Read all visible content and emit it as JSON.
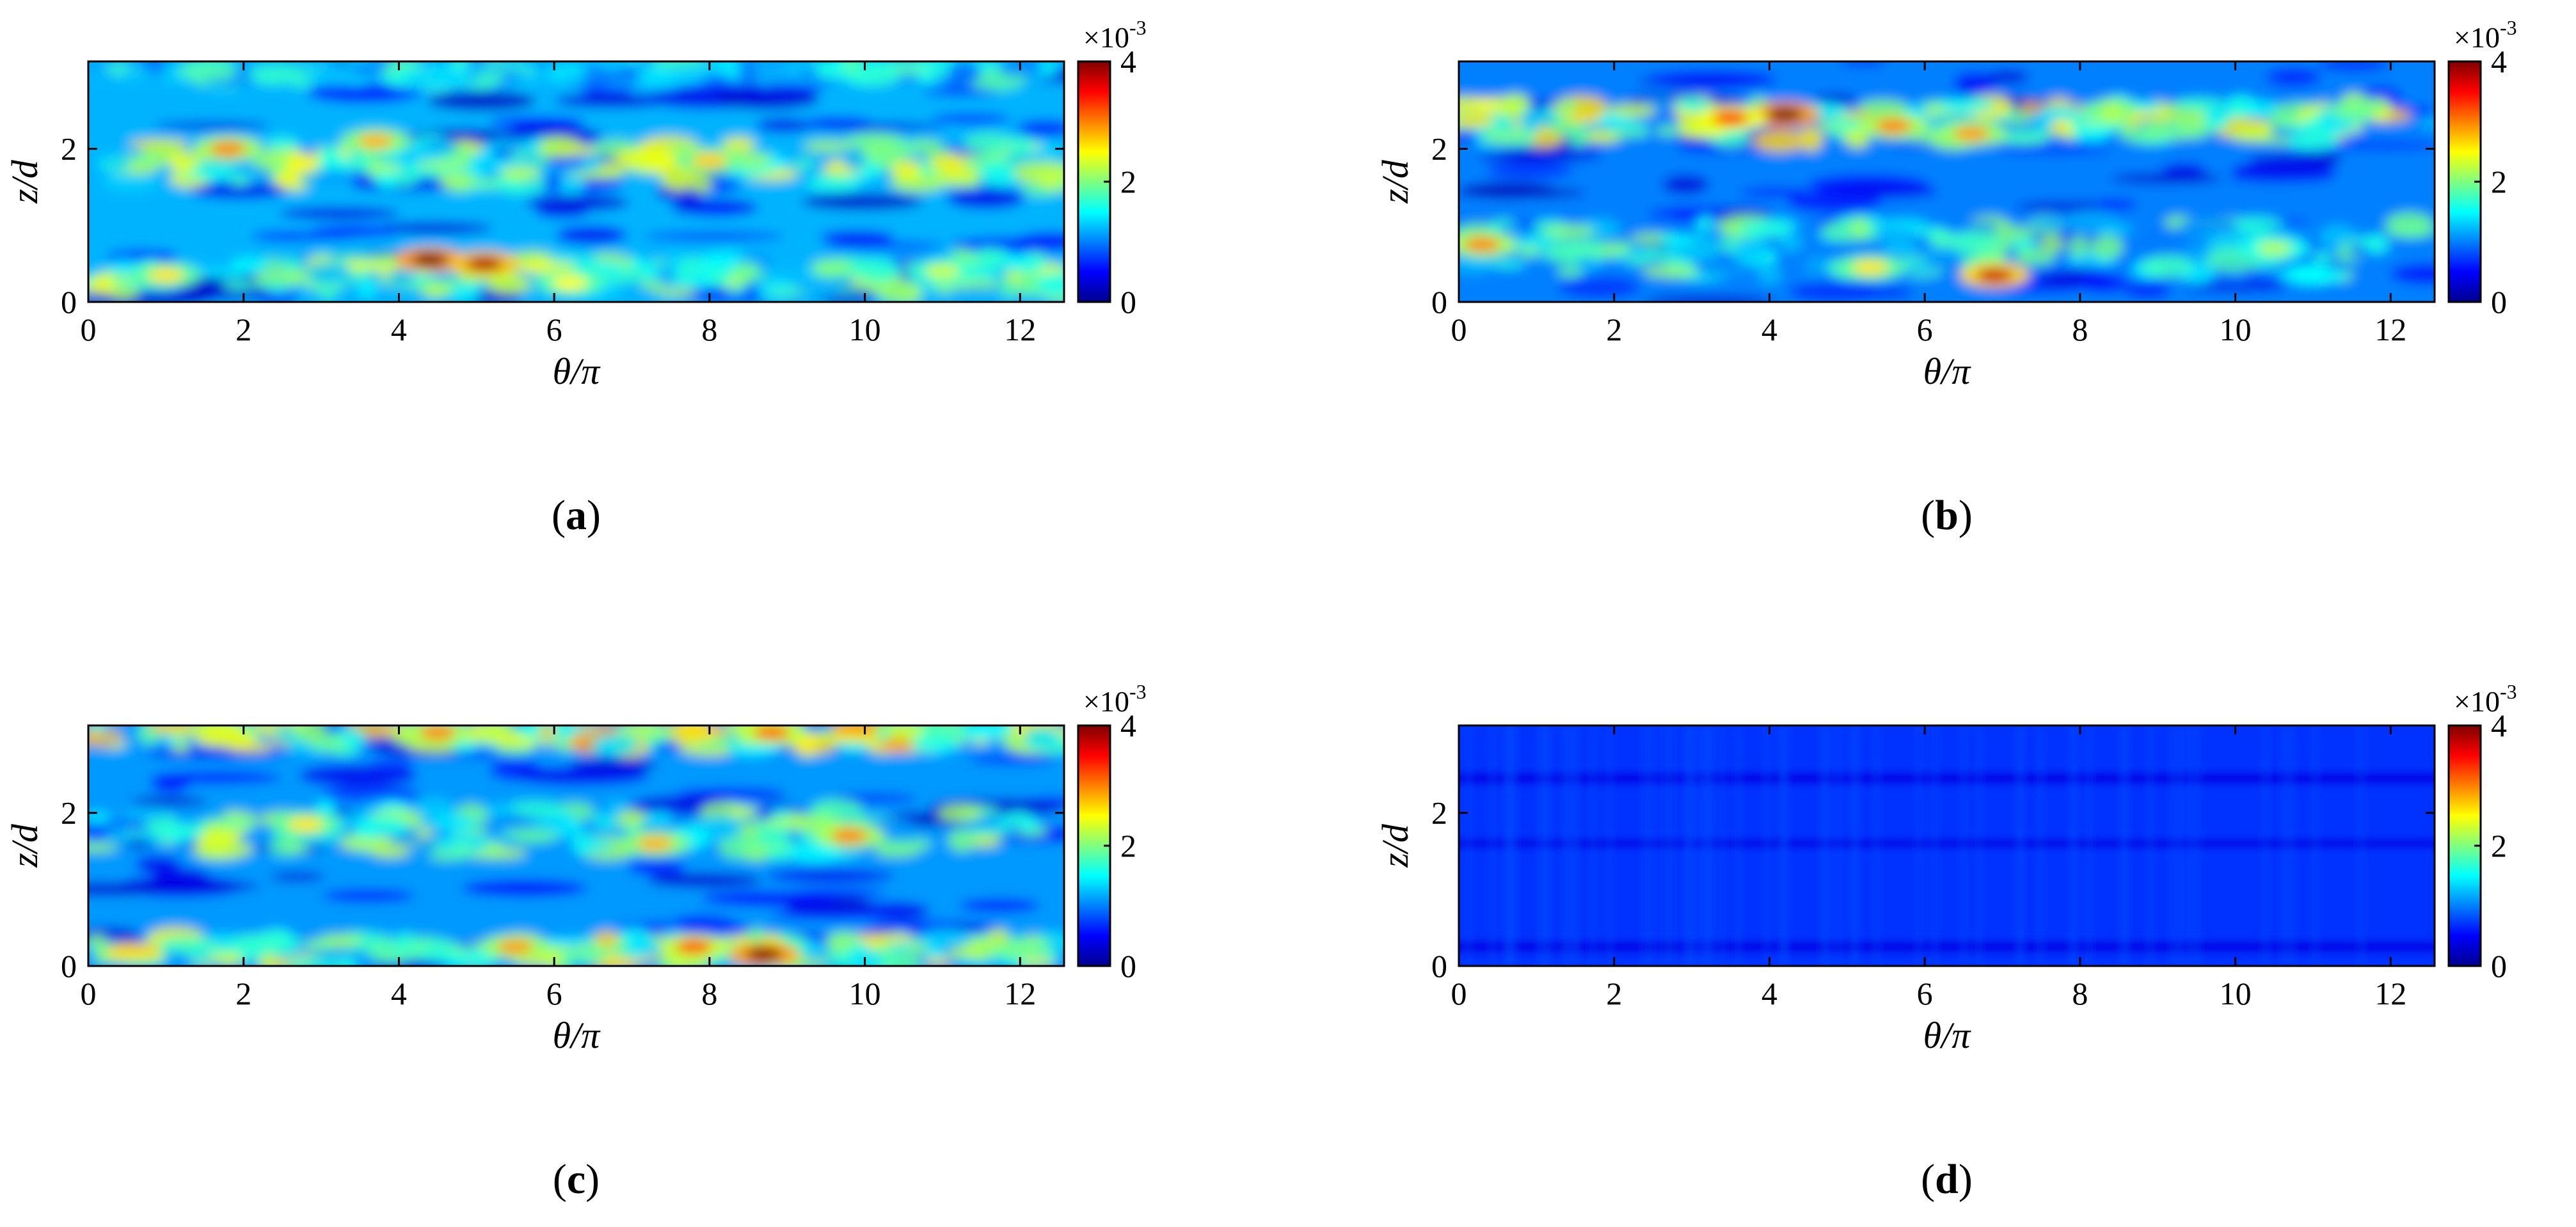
{
  "figure": {
    "colormap": [
      "#00008f",
      "#0000ff",
      "#0080ff",
      "#00ffff",
      "#80ff80",
      "#ffff00",
      "#ff8000",
      "#ff0000",
      "#800000"
    ],
    "panels": [
      {
        "id": "a",
        "caption_letter": "a",
        "xlabel": "θ/π",
        "ylabel": "z/d",
        "colorbar": {
          "ticks": [
            "0",
            "2",
            "4"
          ],
          "min": 0,
          "max": 4,
          "multiplier_base": "×10",
          "multiplier_exp": "-3"
        }
      },
      {
        "id": "b",
        "caption_letter": "b",
        "xlabel": "θ/π",
        "ylabel": "z/d",
        "colorbar": {
          "ticks": [
            "0",
            "2",
            "4"
          ],
          "min": 0,
          "max": 4,
          "multiplier_base": "×10",
          "multiplier_exp": "-3"
        }
      },
      {
        "id": "c",
        "caption_letter": "c",
        "xlabel": "θ/π",
        "ylabel": "z/d",
        "colorbar": {
          "ticks": [
            "0",
            "2",
            "4"
          ],
          "min": 0,
          "max": 4,
          "multiplier_base": "×10",
          "multiplier_exp": "-3"
        }
      },
      {
        "id": "d",
        "caption_letter": "d",
        "xlabel": "θ/π",
        "ylabel": "z/d",
        "colorbar": {
          "ticks": [
            "0",
            "2",
            "4"
          ],
          "min": 0,
          "max": 4,
          "multiplier_base": "×10",
          "multiplier_exp": "-3"
        }
      }
    ]
  },
  "chart_data": [
    {
      "type": "heatmap",
      "panel": "a",
      "x_ticks": [
        "0",
        "2",
        "4",
        "6",
        "8",
        "10",
        "12"
      ],
      "y_ticks": [
        "0",
        "2"
      ],
      "xlabel": "θ/π",
      "ylabel": "z/d",
      "xlim": [
        0,
        12.566
      ],
      "ylim": [
        0,
        3.1416
      ],
      "clim": [
        0,
        0.004
      ],
      "colorbar_ticks": [
        "0",
        "2",
        "4"
      ],
      "background_value": 0.0012,
      "bands": [
        {
          "z": 1.8,
          "width": 0.55,
          "value": 0.0021
        },
        {
          "z": 0.35,
          "width": 0.45,
          "value": 0.002
        },
        {
          "z": 3.0,
          "width": 0.2,
          "value": 0.0015
        }
      ],
      "hotspots": [
        {
          "x": 1.8,
          "z": 2.0,
          "value": 0.003
        },
        {
          "x": 3.7,
          "z": 2.1,
          "value": 0.0028
        },
        {
          "x": 4.4,
          "z": 0.55,
          "value": 0.004
        },
        {
          "x": 5.1,
          "z": 0.5,
          "value": 0.0038
        },
        {
          "x": 8.0,
          "z": 1.85,
          "value": 0.0027
        },
        {
          "x": 1.0,
          "z": 0.35,
          "value": 0.0026
        },
        {
          "x": 6.2,
          "z": 0.25,
          "value": 0.0025
        },
        {
          "x": 11.0,
          "z": 0.4,
          "value": 0.0023
        }
      ]
    },
    {
      "type": "heatmap",
      "panel": "b",
      "x_ticks": [
        "0",
        "2",
        "4",
        "6",
        "8",
        "10",
        "12"
      ],
      "y_ticks": [
        "0",
        "2"
      ],
      "xlabel": "θ/π",
      "ylabel": "z/d",
      "xlim": [
        0,
        12.566
      ],
      "ylim": [
        0,
        3.1416
      ],
      "clim": [
        0,
        0.004
      ],
      "colorbar_ticks": [
        "0",
        "2",
        "4"
      ],
      "background_value": 0.001,
      "bands": [
        {
          "z": 2.35,
          "width": 0.5,
          "value": 0.0022
        },
        {
          "z": 0.7,
          "width": 0.7,
          "value": 0.0017
        }
      ],
      "hotspots": [
        {
          "x": 4.2,
          "z": 2.45,
          "value": 0.004
        },
        {
          "x": 3.5,
          "z": 2.4,
          "value": 0.0034
        },
        {
          "x": 5.6,
          "z": 2.3,
          "value": 0.003
        },
        {
          "x": 6.9,
          "z": 0.35,
          "value": 0.0037
        },
        {
          "x": 6.6,
          "z": 2.2,
          "value": 0.0029
        },
        {
          "x": 0.3,
          "z": 0.75,
          "value": 0.003
        },
        {
          "x": 5.3,
          "z": 0.45,
          "value": 0.0026
        },
        {
          "x": 10.5,
          "z": 0.7,
          "value": 0.0022
        }
      ]
    },
    {
      "type": "heatmap",
      "panel": "c",
      "x_ticks": [
        "0",
        "2",
        "4",
        "6",
        "8",
        "10",
        "12"
      ],
      "y_ticks": [
        "0",
        "2"
      ],
      "xlabel": "θ/π",
      "ylabel": "z/d",
      "xlim": [
        0,
        12.566
      ],
      "ylim": [
        0,
        3.1416
      ],
      "clim": [
        0,
        0.004
      ],
      "colorbar_ticks": [
        "0",
        "2",
        "4"
      ],
      "background_value": 0.0011,
      "bands": [
        {
          "z": 3.0,
          "width": 0.3,
          "value": 0.0023
        },
        {
          "z": 1.75,
          "width": 0.6,
          "value": 0.0019
        },
        {
          "z": 0.2,
          "width": 0.35,
          "value": 0.0022
        }
      ],
      "hotspots": [
        {
          "x": 8.7,
          "z": 0.15,
          "value": 0.004
        },
        {
          "x": 7.8,
          "z": 0.25,
          "value": 0.0032
        },
        {
          "x": 4.5,
          "z": 3.05,
          "value": 0.003
        },
        {
          "x": 8.8,
          "z": 3.05,
          "value": 0.0031
        },
        {
          "x": 9.8,
          "z": 1.7,
          "value": 0.003
        },
        {
          "x": 7.3,
          "z": 1.6,
          "value": 0.0028
        },
        {
          "x": 2.8,
          "z": 1.85,
          "value": 0.0026
        },
        {
          "x": 5.5,
          "z": 0.25,
          "value": 0.0029
        }
      ]
    },
    {
      "type": "heatmap",
      "panel": "d",
      "x_ticks": [
        "0",
        "2",
        "4",
        "6",
        "8",
        "10",
        "12"
      ],
      "y_ticks": [
        "0",
        "2"
      ],
      "xlabel": "θ/π",
      "ylabel": "z/d",
      "xlim": [
        0,
        12.566
      ],
      "ylim": [
        0,
        3.1416
      ],
      "clim": [
        0,
        0.004
      ],
      "colorbar_ticks": [
        "0",
        "2",
        "4"
      ],
      "uniform_value": 0.0007,
      "dark_stripes": [
        {
          "z": 2.45,
          "width": 0.15,
          "value": 0.0004
        },
        {
          "z": 1.6,
          "width": 0.12,
          "value": 0.0004
        },
        {
          "z": 0.25,
          "width": 0.15,
          "value": 0.0004
        }
      ]
    }
  ]
}
